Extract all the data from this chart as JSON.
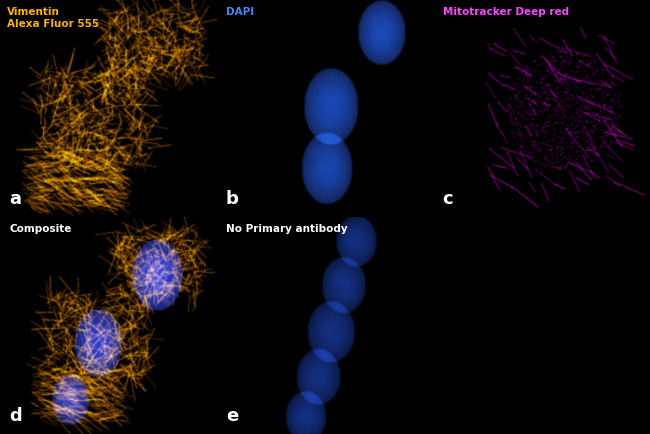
{
  "fig_width": 6.5,
  "fig_height": 4.34,
  "dpi": 100,
  "bg_color": "#000000",
  "panel_bg": "#000000",
  "panels": [
    {
      "label": "a",
      "title": "Vimentin\nAlexa Fluor 555",
      "title_color": "#FFB300",
      "label_color": "#ffffff",
      "row": 0,
      "col": 0,
      "colspan": 1,
      "type": "vimentin"
    },
    {
      "label": "b",
      "title": "DAPI",
      "title_color": "#4488ff",
      "label_color": "#ffffff",
      "row": 0,
      "col": 1,
      "colspan": 1,
      "type": "dapi"
    },
    {
      "label": "c",
      "title": "Mitotracker Deep red",
      "title_color": "#FF44FF",
      "label_color": "#ffffff",
      "row": 0,
      "col": 2,
      "colspan": 1,
      "type": "mito"
    },
    {
      "label": "d",
      "title": "Composite",
      "title_color": "#ffffff",
      "label_color": "#ffffff",
      "row": 1,
      "col": 0,
      "colspan": 1,
      "type": "composite"
    },
    {
      "label": "e",
      "title": "No Primary antibody",
      "title_color": "#ffffff",
      "label_color": "#ffffff",
      "row": 1,
      "col": 1,
      "colspan": 1,
      "type": "no_primary"
    }
  ],
  "label_fontsize": 13,
  "title_fontsize": 7.5,
  "img_size": 256
}
